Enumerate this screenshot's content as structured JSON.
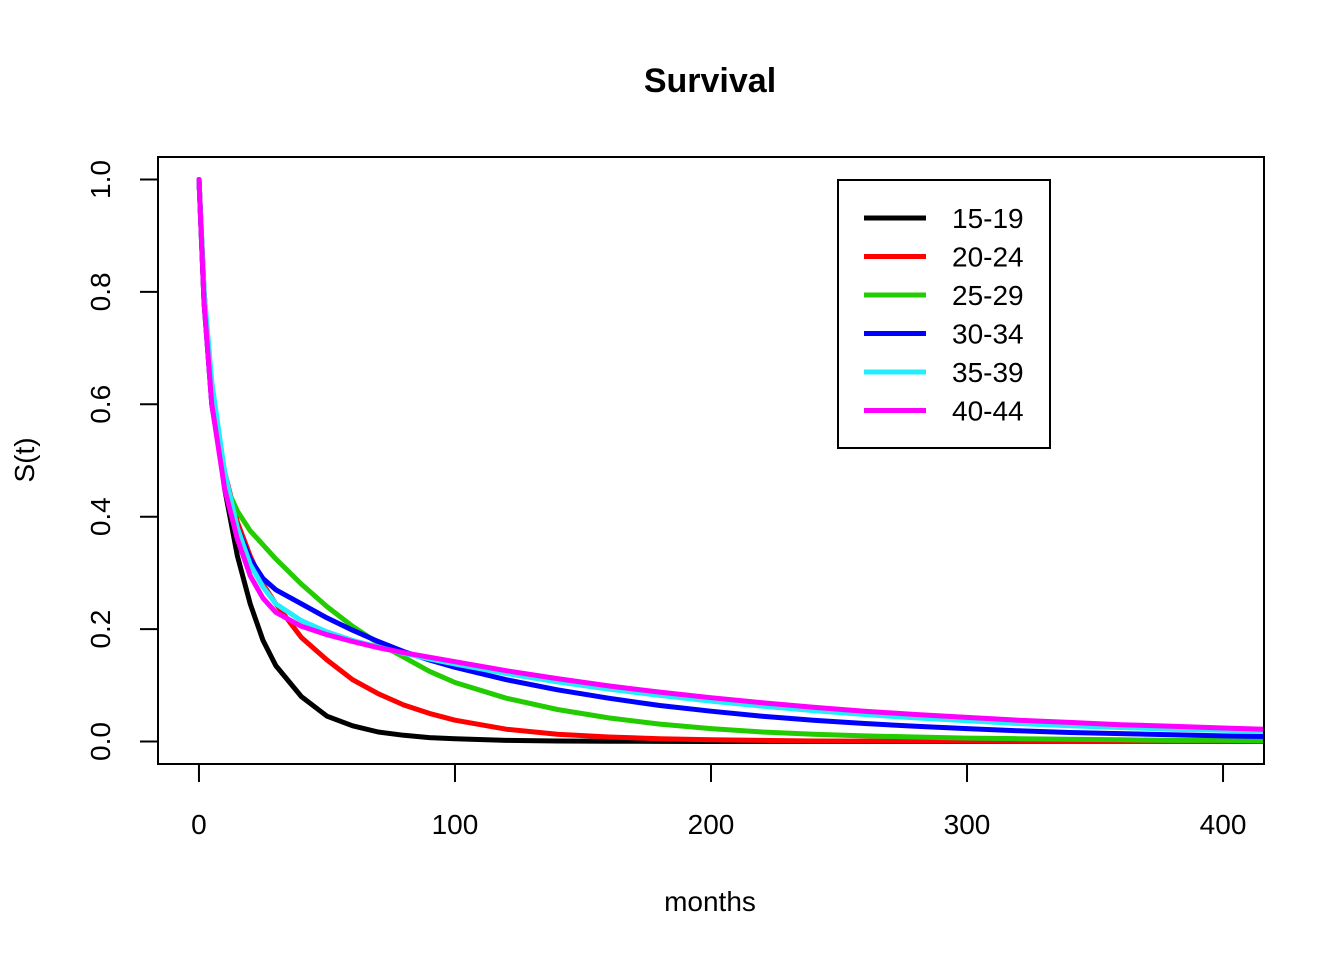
{
  "chart_data": {
    "type": "line",
    "title": "Survival",
    "xlabel": "months",
    "ylabel": "S(t)",
    "xlim": [
      -16,
      416
    ],
    "ylim": [
      -0.04,
      1.04
    ],
    "x_ticks": [
      0,
      100,
      200,
      300,
      400
    ],
    "y_ticks": [
      0.0,
      0.2,
      0.4,
      0.6,
      0.8,
      1.0
    ],
    "x_tick_labels": [
      "0",
      "100",
      "200",
      "300",
      "400"
    ],
    "y_tick_labels": [
      "0.0",
      "0.2",
      "0.4",
      "0.6",
      "0.8",
      "1.0"
    ],
    "grid": false,
    "legend_position": "top-right",
    "x": [
      0,
      2,
      5,
      10,
      15,
      20,
      25,
      30,
      40,
      50,
      60,
      70,
      80,
      90,
      100,
      120,
      140,
      160,
      180,
      200,
      220,
      240,
      260,
      280,
      300,
      320,
      340,
      360,
      380,
      400,
      416
    ],
    "series": [
      {
        "name": "15-19",
        "color": "#000000",
        "values": [
          1.0,
          0.8,
          0.62,
          0.45,
          0.33,
          0.245,
          0.18,
          0.135,
          0.08,
          0.045,
          0.028,
          0.017,
          0.011,
          0.007,
          0.005,
          0.002,
          0.001,
          0.0005,
          0.0002,
          0.0001,
          0.0,
          0.0,
          0.0,
          0.0,
          0.0,
          0.0,
          0.0,
          0.0,
          0.0,
          0.0,
          0.0
        ]
      },
      {
        "name": "20-24",
        "color": "#FF0000",
        "values": [
          1.0,
          0.78,
          0.62,
          0.48,
          0.39,
          0.33,
          0.28,
          0.245,
          0.185,
          0.145,
          0.11,
          0.085,
          0.065,
          0.05,
          0.038,
          0.022,
          0.013,
          0.008,
          0.005,
          0.003,
          0.002,
          0.001,
          0.0007,
          0.0005,
          0.0003,
          0.0002,
          0.0001,
          0.0001,
          0.0,
          0.0,
          0.0
        ]
      },
      {
        "name": "25-29",
        "color": "#22CC00",
        "values": [
          1.0,
          0.78,
          0.6,
          0.46,
          0.41,
          0.375,
          0.35,
          0.325,
          0.28,
          0.24,
          0.205,
          0.175,
          0.15,
          0.125,
          0.105,
          0.077,
          0.057,
          0.042,
          0.031,
          0.023,
          0.017,
          0.013,
          0.01,
          0.008,
          0.006,
          0.005,
          0.004,
          0.003,
          0.002,
          0.002,
          0.0015
        ]
      },
      {
        "name": "30-34",
        "color": "#0000FF",
        "values": [
          1.0,
          0.78,
          0.6,
          0.46,
          0.38,
          0.325,
          0.29,
          0.27,
          0.245,
          0.22,
          0.198,
          0.178,
          0.16,
          0.145,
          0.132,
          0.11,
          0.092,
          0.077,
          0.064,
          0.054,
          0.045,
          0.038,
          0.032,
          0.027,
          0.023,
          0.019,
          0.016,
          0.014,
          0.012,
          0.01,
          0.009
        ]
      },
      {
        "name": "35-39",
        "color": "#22EEFF",
        "values": [
          1.0,
          0.8,
          0.64,
          0.48,
          0.38,
          0.315,
          0.275,
          0.245,
          0.215,
          0.195,
          0.18,
          0.168,
          0.157,
          0.147,
          0.138,
          0.121,
          0.106,
          0.093,
          0.082,
          0.072,
          0.063,
          0.055,
          0.048,
          0.042,
          0.037,
          0.032,
          0.028,
          0.025,
          0.022,
          0.02,
          0.018
        ]
      },
      {
        "name": "40-44",
        "color": "#FF00FF",
        "values": [
          1.0,
          0.78,
          0.6,
          0.45,
          0.36,
          0.295,
          0.255,
          0.23,
          0.205,
          0.19,
          0.178,
          0.167,
          0.158,
          0.15,
          0.142,
          0.126,
          0.112,
          0.099,
          0.088,
          0.078,
          0.069,
          0.061,
          0.054,
          0.048,
          0.043,
          0.038,
          0.034,
          0.03,
          0.027,
          0.024,
          0.022
        ]
      }
    ]
  }
}
